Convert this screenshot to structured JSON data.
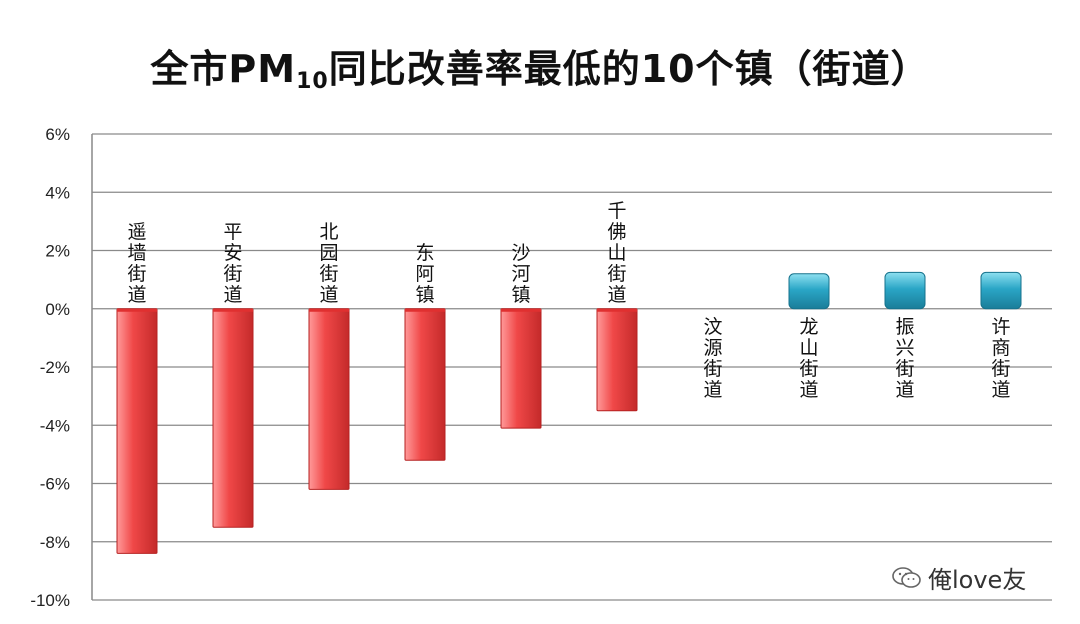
{
  "chart_data": {
    "type": "bar",
    "title_main": "全市PM",
    "title_sub": "10",
    "title_rest": "同比改善率最低的10个镇（街道）",
    "categories": [
      "遥墙街道",
      "平安街道",
      "北园街道",
      "东阿镇",
      "沙河镇",
      "千佛山街道",
      "汶源街道",
      "龙山街道",
      "振兴街道",
      "许商街道"
    ],
    "values": [
      -8.4,
      -7.5,
      -6.2,
      -5.2,
      -4.1,
      -3.5,
      0.0,
      1.2,
      1.25,
      1.25
    ],
    "ylim": [
      -10,
      6
    ],
    "yticks": [
      6,
      4,
      2,
      0,
      -2,
      -4,
      -6,
      -8,
      -10
    ],
    "ytick_labels": [
      "6%",
      "4%",
      "2%",
      "0%",
      "-2%",
      "-4%",
      "-6%",
      "-8%",
      "-10%"
    ],
    "grid": true,
    "colors": {
      "negative": "#f04848",
      "positive": "#2aa6c6"
    }
  },
  "watermark": {
    "text": "俺love友"
  }
}
